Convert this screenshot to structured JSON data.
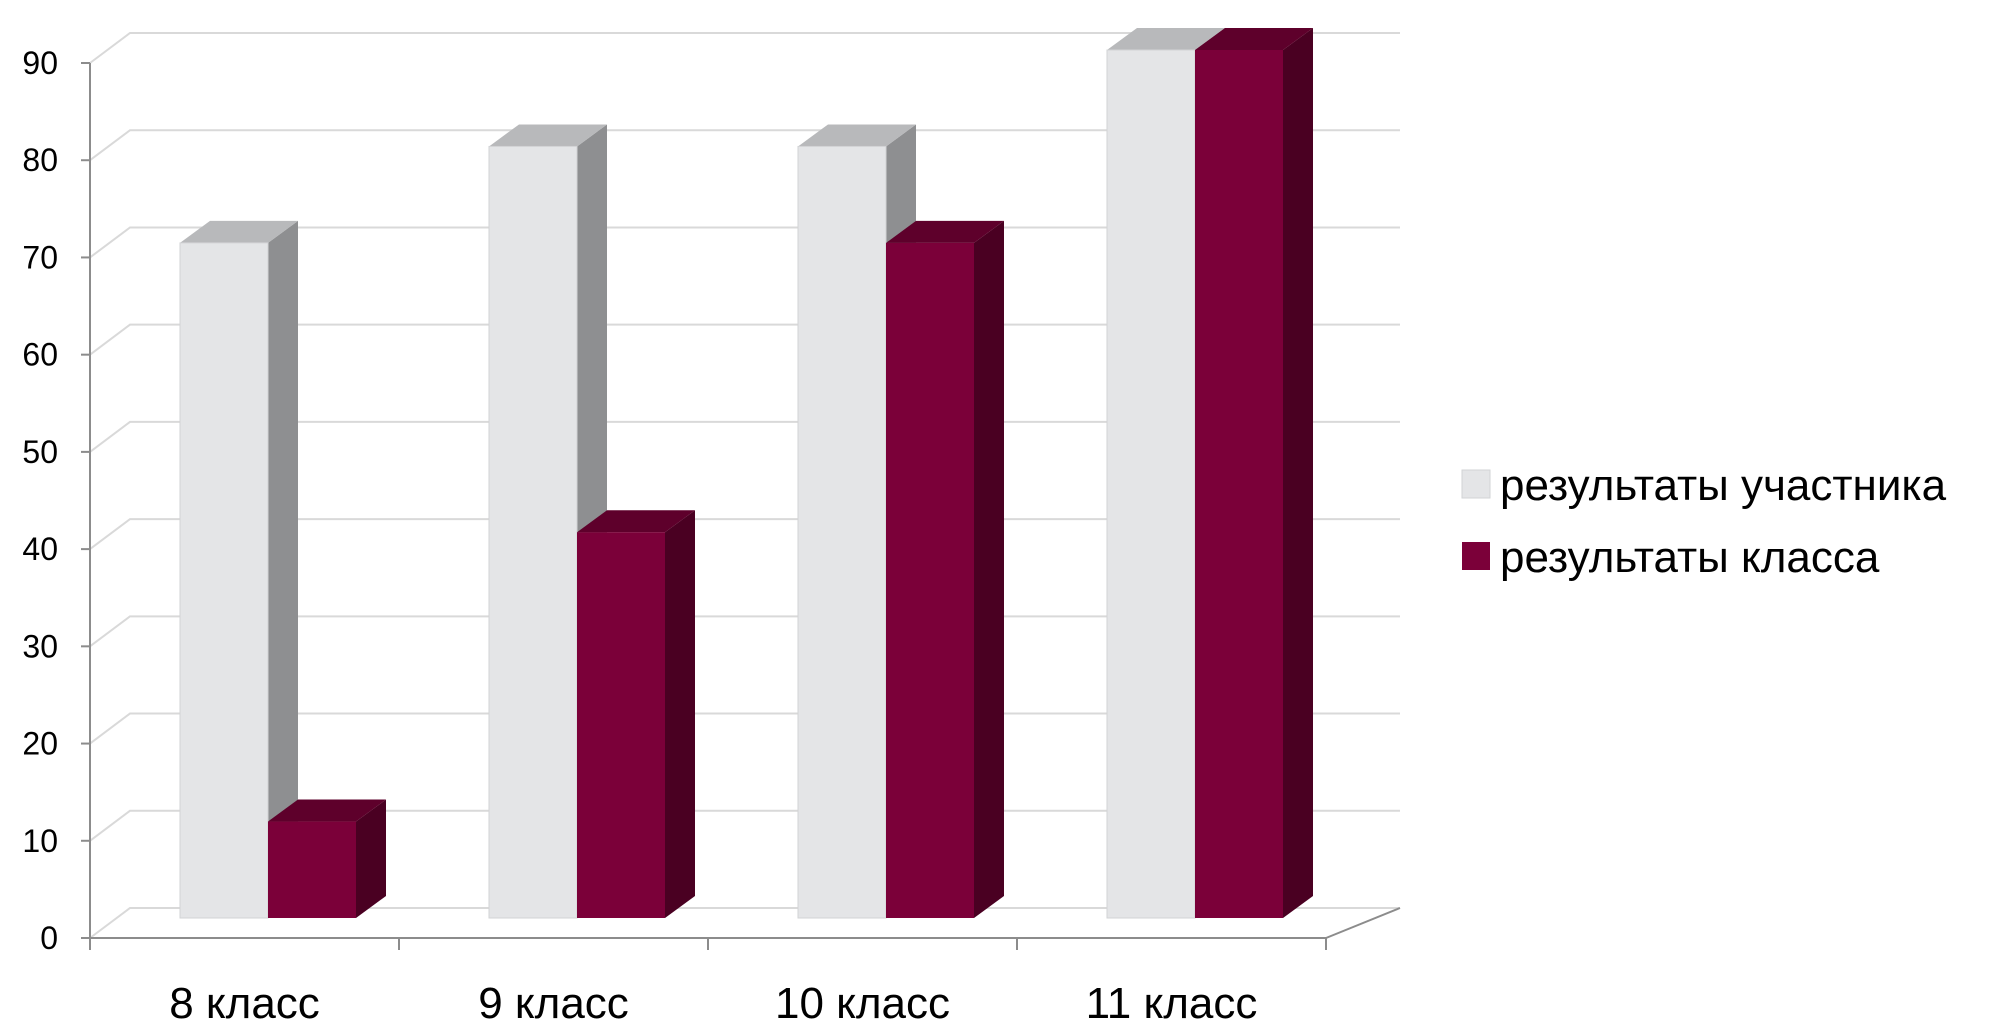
{
  "chart_data": {
    "type": "bar",
    "style": "3d-clustered-column",
    "categories": [
      "8 класс",
      "9 класс",
      "10 класс",
      "11 класс"
    ],
    "series": [
      {
        "name": "результаты участника",
        "values": [
          70,
          80,
          80,
          90
        ],
        "color": "#e4e5e7",
        "top_color": "#b8b9bb",
        "side_color": "#8e8f91"
      },
      {
        "name": "результаты класса",
        "values": [
          10,
          40,
          70,
          90
        ],
        "color": "#7b0039",
        "top_color": "#5e002b",
        "side_color": "#4a0022"
      }
    ],
    "ylim": [
      0,
      90
    ],
    "yticks": [
      0,
      10,
      20,
      30,
      40,
      50,
      60,
      70,
      80,
      90
    ],
    "grid": true,
    "legend": "right",
    "title": "",
    "xlabel": "",
    "ylabel": ""
  }
}
